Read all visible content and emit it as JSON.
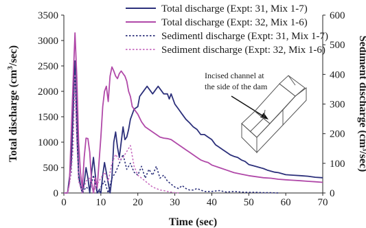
{
  "chart_data": {
    "type": "line",
    "xlabel": "Time (sec)",
    "ylabel": "Total discharge (cm³/sec)",
    "ylabel_prefix": "Total discharge (cm",
    "ylabel_sup": "3",
    "ylabel_suffix": "/sec)",
    "y2label": "Sediment discharge (cm³/sec)",
    "xlim": [
      0,
      70
    ],
    "ylim": [
      0,
      3500
    ],
    "y2lim": [
      0,
      600
    ],
    "xticks": [
      "0",
      "10",
      "20",
      "30",
      "40",
      "50",
      "60",
      "70"
    ],
    "yticks": [
      "0",
      "500",
      "1000",
      "1500",
      "2000",
      "2500",
      "3000",
      "3500"
    ],
    "y2ticks": [
      "0",
      "100",
      "200",
      "300",
      "400",
      "500",
      "600"
    ],
    "grid": false,
    "legend_position": "top-right",
    "annotation": {
      "lines": [
        "Incised channel at",
        "the side of the dam"
      ]
    },
    "series": [
      {
        "name": "Total discharge (Expt: 31, Mix 1-7)",
        "axis": "left",
        "style": "solid",
        "color": "#2b2f7a",
        "points": [
          [
            0,
            0
          ],
          [
            1,
            0
          ],
          [
            2,
            600
          ],
          [
            2.5,
            1600
          ],
          [
            3,
            2600
          ],
          [
            3.5,
            1500
          ],
          [
            4,
            400
          ],
          [
            4.5,
            150
          ],
          [
            5,
            0
          ],
          [
            5.5,
            200
          ],
          [
            6,
            500
          ],
          [
            6.5,
            300
          ],
          [
            7,
            0
          ],
          [
            7.5,
            400
          ],
          [
            8,
            700
          ],
          [
            8.5,
            350
          ],
          [
            9,
            0
          ],
          [
            9.5,
            50
          ],
          [
            10,
            0
          ],
          [
            10.5,
            350
          ],
          [
            11,
            600
          ],
          [
            11.5,
            400
          ],
          [
            12,
            200
          ],
          [
            12.5,
            0
          ],
          [
            13,
            300
          ],
          [
            13.5,
            1000
          ],
          [
            14,
            1200
          ],
          [
            14.5,
            900
          ],
          [
            15,
            700
          ],
          [
            15.5,
            1000
          ],
          [
            16,
            1300
          ],
          [
            16.5,
            1050
          ],
          [
            17,
            1100
          ],
          [
            17.5,
            1250
          ],
          [
            18,
            1450
          ],
          [
            19,
            1650
          ],
          [
            20,
            1700
          ],
          [
            20.5,
            1900
          ],
          [
            21,
            1950
          ],
          [
            22,
            2050
          ],
          [
            22.5,
            2100
          ],
          [
            23,
            2050
          ],
          [
            24,
            1950
          ],
          [
            25,
            2050
          ],
          [
            25.5,
            2100
          ],
          [
            26,
            2050
          ],
          [
            27,
            1950
          ],
          [
            28,
            1950
          ],
          [
            28.5,
            1850
          ],
          [
            29,
            1950
          ],
          [
            30,
            1750
          ],
          [
            31,
            1650
          ],
          [
            32,
            1550
          ],
          [
            33,
            1450
          ],
          [
            34,
            1380
          ],
          [
            35,
            1300
          ],
          [
            36,
            1250
          ],
          [
            37,
            1150
          ],
          [
            38,
            1150
          ],
          [
            39,
            1100
          ],
          [
            40,
            1050
          ],
          [
            41,
            950
          ],
          [
            42,
            900
          ],
          [
            43,
            850
          ],
          [
            44,
            800
          ],
          [
            45,
            750
          ],
          [
            46,
            720
          ],
          [
            47,
            700
          ],
          [
            48,
            650
          ],
          [
            49,
            620
          ],
          [
            50,
            560
          ],
          [
            51,
            540
          ],
          [
            52,
            520
          ],
          [
            53,
            500
          ],
          [
            54,
            480
          ],
          [
            55,
            450
          ],
          [
            56,
            430
          ],
          [
            57,
            410
          ],
          [
            58,
            400
          ],
          [
            59,
            380
          ],
          [
            60,
            360
          ],
          [
            62,
            350
          ],
          [
            64,
            340
          ],
          [
            66,
            330
          ],
          [
            68,
            310
          ],
          [
            70,
            300
          ]
        ]
      },
      {
        "name": "Total discharge (Expt: 32, Mix 1-6)",
        "axis": "left",
        "style": "solid",
        "color": "#b048a8",
        "points": [
          [
            0,
            0
          ],
          [
            1,
            0
          ],
          [
            1.5,
            200
          ],
          [
            2,
            1200
          ],
          [
            2.5,
            2200
          ],
          [
            3,
            3150
          ],
          [
            3.5,
            2300
          ],
          [
            4,
            1000
          ],
          [
            4.5,
            400
          ],
          [
            5,
            100
          ],
          [
            5.5,
            700
          ],
          [
            6,
            1080
          ],
          [
            6.5,
            1070
          ],
          [
            7,
            800
          ],
          [
            7.5,
            200
          ],
          [
            8,
            0
          ],
          [
            8.5,
            300
          ],
          [
            9,
            100
          ],
          [
            9.5,
            600
          ],
          [
            10,
            1100
          ],
          [
            10.5,
            1700
          ],
          [
            11,
            2000
          ],
          [
            11.5,
            2100
          ],
          [
            12,
            1800
          ],
          [
            12.5,
            2300
          ],
          [
            13,
            2480
          ],
          [
            13.5,
            2400
          ],
          [
            14,
            2300
          ],
          [
            14.5,
            2250
          ],
          [
            15,
            2350
          ],
          [
            15.5,
            2400
          ],
          [
            16,
            2350
          ],
          [
            16.5,
            2300
          ],
          [
            17,
            2200
          ],
          [
            17.5,
            2000
          ],
          [
            18,
            1900
          ],
          [
            18.5,
            1700
          ],
          [
            19,
            1650
          ],
          [
            20,
            1550
          ],
          [
            21,
            1400
          ],
          [
            22,
            1300
          ],
          [
            23,
            1250
          ],
          [
            24,
            1200
          ],
          [
            25,
            1150
          ],
          [
            26,
            1100
          ],
          [
            27,
            1080
          ],
          [
            28,
            1070
          ],
          [
            29,
            1050
          ],
          [
            30,
            1000
          ],
          [
            31,
            950
          ],
          [
            32,
            900
          ],
          [
            33,
            850
          ],
          [
            34,
            800
          ],
          [
            35,
            750
          ],
          [
            36,
            700
          ],
          [
            37,
            650
          ],
          [
            38,
            620
          ],
          [
            39,
            600
          ],
          [
            40,
            550
          ],
          [
            42,
            500
          ],
          [
            44,
            450
          ],
          [
            46,
            400
          ],
          [
            48,
            370
          ],
          [
            50,
            340
          ],
          [
            52,
            320
          ],
          [
            54,
            300
          ],
          [
            56,
            290
          ],
          [
            58,
            270
          ],
          [
            60,
            260
          ],
          [
            62,
            250
          ],
          [
            64,
            240
          ],
          [
            66,
            230
          ],
          [
            68,
            220
          ],
          [
            70,
            210
          ]
        ]
      },
      {
        "name": "Sedimentl discharge (Expt: 31, Mix 1-7)",
        "axis": "right",
        "style": "dotted",
        "color": "#2b2f7a",
        "points": [
          [
            0,
            0
          ],
          [
            1,
            0
          ],
          [
            2,
            70
          ],
          [
            2.5,
            200
          ],
          [
            3,
            420
          ],
          [
            3.5,
            200
          ],
          [
            4,
            50
          ],
          [
            5,
            0
          ],
          [
            6,
            20
          ],
          [
            7,
            10
          ],
          [
            8,
            60
          ],
          [
            9,
            0
          ],
          [
            10,
            20
          ],
          [
            11,
            40
          ],
          [
            12,
            0
          ],
          [
            13,
            50
          ],
          [
            14,
            70
          ],
          [
            15,
            100
          ],
          [
            16,
            130
          ],
          [
            17,
            80
          ],
          [
            18,
            100
          ],
          [
            19,
            70
          ],
          [
            20,
            60
          ],
          [
            21,
            90
          ],
          [
            22,
            50
          ],
          [
            23,
            80
          ],
          [
            24,
            60
          ],
          [
            25,
            90
          ],
          [
            26,
            50
          ],
          [
            27,
            60
          ],
          [
            28,
            40
          ],
          [
            29,
            30
          ],
          [
            30,
            20
          ],
          [
            31,
            15
          ],
          [
            32,
            25
          ],
          [
            33,
            15
          ],
          [
            34,
            10
          ],
          [
            35,
            10
          ],
          [
            36,
            15
          ],
          [
            37,
            10
          ],
          [
            38,
            5
          ],
          [
            40,
            5
          ],
          [
            42,
            8
          ],
          [
            44,
            3
          ],
          [
            46,
            5
          ],
          [
            48,
            3
          ],
          [
            50,
            2
          ],
          [
            52,
            2
          ],
          [
            54,
            1
          ],
          [
            56,
            1
          ],
          [
            58,
            0
          ]
        ]
      },
      {
        "name": "Sediment discharge (Expt: 32, Mix 1-6)",
        "axis": "right",
        "style": "dotted",
        "color": "#c86cc0",
        "points": [
          [
            0,
            0
          ],
          [
            1,
            0
          ],
          [
            1.5,
            30
          ],
          [
            2,
            80
          ],
          [
            2.5,
            150
          ],
          [
            3,
            400
          ],
          [
            3.5,
            180
          ],
          [
            4,
            40
          ],
          [
            5,
            0
          ],
          [
            6,
            40
          ],
          [
            7,
            50
          ],
          [
            8,
            0
          ],
          [
            9,
            30
          ],
          [
            10,
            50
          ],
          [
            11,
            70
          ],
          [
            12,
            40
          ],
          [
            13,
            100
          ],
          [
            14,
            130
          ],
          [
            15,
            110
          ],
          [
            16,
            120
          ],
          [
            17,
            140
          ],
          [
            18,
            160
          ],
          [
            18.5,
            125
          ],
          [
            19,
            90
          ],
          [
            20,
            60
          ],
          [
            21,
            50
          ],
          [
            22,
            40
          ],
          [
            23,
            30
          ],
          [
            24,
            20
          ],
          [
            25,
            15
          ],
          [
            26,
            10
          ],
          [
            27,
            8
          ],
          [
            28,
            5
          ],
          [
            29,
            3
          ],
          [
            30,
            1
          ],
          [
            31,
            0
          ]
        ]
      }
    ]
  }
}
